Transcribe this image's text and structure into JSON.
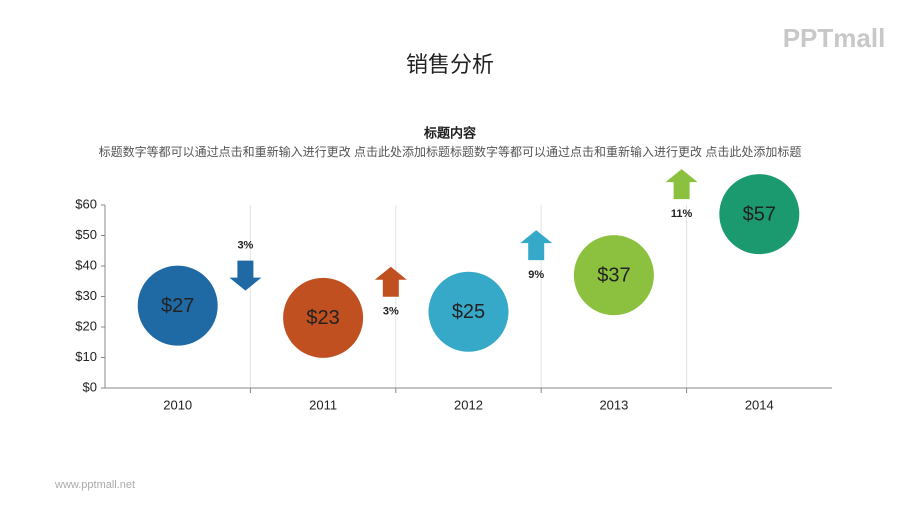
{
  "logo": "PPTmall",
  "footer": "www.pptmall.net",
  "chart_data": {
    "type": "dot",
    "title": "销售分析",
    "subtitle": "标题内容",
    "description": "标题数字等都可以通过点击和重新输入进行更改 点击此处添加标题标题数字等都可以通过点击和重新输入进行更改 点击此处添加标题",
    "categories": [
      "2010",
      "2011",
      "2012",
      "2013",
      "2014"
    ],
    "values": [
      27,
      23,
      25,
      37,
      57
    ],
    "value_labels": [
      "$27",
      "$23",
      "$25",
      "$37",
      "$57"
    ],
    "colors": [
      "#1f6aa5",
      "#c0501f",
      "#36a9c9",
      "#8cc03f",
      "#1a9a6e"
    ],
    "changes": [
      3,
      3,
      9,
      11
    ],
    "change_labels": [
      "3%",
      "3%",
      "9%",
      "11%"
    ],
    "change_directions": [
      "down",
      "up",
      "up",
      "up"
    ],
    "ylim": [
      0,
      60
    ],
    "yticks": [
      {
        "value": 0,
        "label": "$0"
      },
      {
        "value": 10,
        "label": "$10"
      },
      {
        "value": 20,
        "label": "$20"
      },
      {
        "value": 30,
        "label": "$30"
      },
      {
        "value": 40,
        "label": "$40"
      },
      {
        "value": 50,
        "label": "$50"
      },
      {
        "value": 60,
        "label": "$60"
      }
    ]
  }
}
